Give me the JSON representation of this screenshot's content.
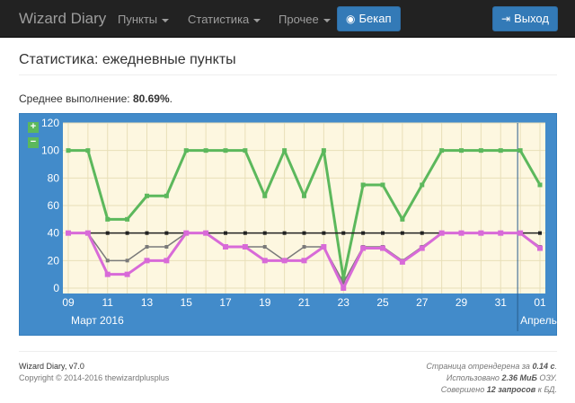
{
  "navbar": {
    "brand": "Wizard Diary",
    "menu": [
      {
        "label": "Пункты"
      },
      {
        "label": "Статистика"
      },
      {
        "label": "Прочее"
      }
    ],
    "backup_label": "Бекап",
    "logout_label": "Выход"
  },
  "page": {
    "title": "Статистика: ежедневные пункты",
    "average_label": "Среднее выполнение: ",
    "average_value": "80.69%",
    "average_suffix": "."
  },
  "zoom": {
    "plus": "+",
    "minus": "−"
  },
  "colors": {
    "plot_bg": "#fdf7e0",
    "panel_bg": "#428bca",
    "green": "#5cb85c",
    "gray": "#7a7a7a",
    "black": "#222222",
    "magenta": "#d86ad8"
  },
  "chart_data": {
    "type": "line",
    "ylim": [
      0,
      120
    ],
    "yticks": [
      0,
      20,
      40,
      60,
      80,
      100,
      120
    ],
    "x": [
      "2016-03-09",
      "2016-03-10",
      "2016-03-11",
      "2016-03-12",
      "2016-03-13",
      "2016-03-14",
      "2016-03-15",
      "2016-03-16",
      "2016-03-17",
      "2016-03-18",
      "2016-03-19",
      "2016-03-20",
      "2016-03-21",
      "2016-03-22",
      "2016-03-23",
      "2016-03-24",
      "2016-03-25",
      "2016-03-26",
      "2016-03-27",
      "2016-03-28",
      "2016-03-29",
      "2016-03-30",
      "2016-03-31",
      "2016-04-01",
      "2016-04-02"
    ],
    "xtick_labels": [
      "09",
      "11",
      "13",
      "15",
      "17",
      "19",
      "21",
      "23",
      "25",
      "27",
      "29",
      "31",
      "01"
    ],
    "month_labels": [
      "Март 2016",
      "Апрель"
    ],
    "grid": true,
    "series": [
      {
        "values": [
          100,
          100,
          50,
          50,
          67,
          67,
          100,
          100,
          100,
          100,
          67,
          100,
          67,
          100,
          7,
          75,
          75,
          50,
          75,
          100,
          100,
          100,
          100,
          100,
          75
        ]
      },
      {
        "values": [
          40,
          40,
          20,
          20,
          30,
          30,
          40,
          40,
          30,
          30,
          30,
          20,
          30,
          30,
          4,
          30,
          30,
          20,
          30,
          40,
          40,
          40,
          40,
          40,
          30
        ]
      },
      {
        "values": [
          40,
          40,
          40,
          40,
          40,
          40,
          40,
          40,
          40,
          40,
          40,
          40,
          40,
          40,
          40,
          40,
          40,
          40,
          40,
          40,
          40,
          40,
          40,
          40,
          40
        ]
      },
      {
        "values": [
          40,
          40,
          10,
          10,
          20,
          20,
          40,
          40,
          30,
          30,
          20,
          20,
          20,
          30,
          0,
          29,
          29,
          19,
          29,
          40,
          40,
          40,
          40,
          40,
          29
        ]
      }
    ]
  },
  "footer": {
    "app_version": "Wizard Diary, v7.0",
    "copyright": "Copyright © 2014-2016 thewizardplusplus",
    "render_prefix": "Страница отрендерена за ",
    "render_value": "0.14 с",
    "render_suffix": ".",
    "memory_prefix": "Использовано ",
    "memory_value": "2.36 МиБ",
    "memory_suffix": " ОЗУ.",
    "queries_prefix": "Совершено ",
    "queries_value": "12 запросов",
    "queries_suffix": " к БД."
  }
}
